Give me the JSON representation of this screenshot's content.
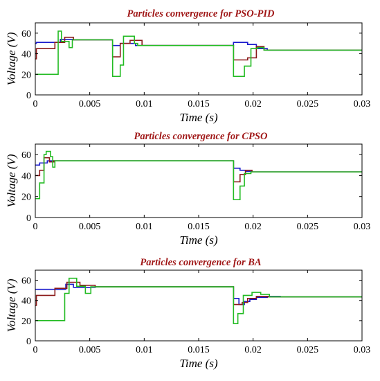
{
  "chart_data": [
    {
      "type": "line",
      "title": "Particles convergence for PSO-PID",
      "xlabel": "Time (s)",
      "ylabel": "Voltage (V)",
      "xlim": [
        0,
        0.03
      ],
      "ylim": [
        0,
        70
      ],
      "xticks": [
        "0",
        "0.005",
        "0.01",
        "0.015",
        "0.02",
        "0.025",
        "0.03"
      ],
      "yticks": [
        "0",
        "20",
        "40",
        "60"
      ],
      "series": [
        {
          "color": "#1a1acc",
          "x": [
            0,
            0.0001,
            0.0001,
            0.0023,
            0.0023,
            0.0035,
            0.0035,
            0.0071,
            0.0071,
            0.0078,
            0.0078,
            0.0092,
            0.0092,
            0.0182,
            0.0182,
            0.0195,
            0.0195,
            0.0203,
            0.0203,
            0.0213,
            0.0213,
            0.03
          ],
          "y": [
            50,
            50,
            51,
            51,
            54,
            54,
            53.5,
            53.5,
            48,
            48,
            50,
            50,
            48,
            48,
            51,
            51,
            49,
            49,
            45,
            45,
            43.5,
            43.5
          ]
        },
        {
          "color": "#8b1a1a",
          "x": [
            0,
            0.0001,
            0.0001,
            0.0018,
            0.0018,
            0.0027,
            0.0027,
            0.0035,
            0.0035,
            0.0071,
            0.0071,
            0.0078,
            0.0078,
            0.0087,
            0.0087,
            0.0098,
            0.0098,
            0.0182,
            0.0182,
            0.0195,
            0.0195,
            0.0203,
            0.0203,
            0.021,
            0.021,
            0.03
          ],
          "y": [
            35,
            35,
            45,
            45,
            51,
            51,
            56,
            56,
            53.5,
            53.5,
            37,
            37,
            50,
            50,
            53,
            53,
            48,
            48,
            34,
            34,
            36,
            36,
            47,
            47,
            43.5,
            43.5
          ]
        },
        {
          "color": "#22bb22",
          "x": [
            0,
            0.0001,
            0.0001,
            0.0021,
            0.0021,
            0.0024,
            0.0024,
            0.0031,
            0.0031,
            0.0034,
            0.0034,
            0.0071,
            0.0071,
            0.0078,
            0.0078,
            0.0081,
            0.0081,
            0.0091,
            0.0091,
            0.0094,
            0.0094,
            0.0182,
            0.0182,
            0.0192,
            0.0192,
            0.0198,
            0.0198,
            0.0204,
            0.0204,
            0.021,
            0.021,
            0.03
          ],
          "y": [
            20,
            20,
            20,
            20,
            62,
            62,
            52,
            52,
            46,
            46,
            53.5,
            53.5,
            18,
            18,
            29,
            29,
            57,
            57,
            50,
            50,
            48,
            48,
            18,
            18,
            28,
            28,
            45,
            45,
            46,
            46,
            43.5,
            43.5
          ]
        }
      ]
    },
    {
      "type": "line",
      "title": "Particles convergence for CPSO",
      "xlabel": "Time (s)",
      "ylabel": "Voltage (V)",
      "xlim": [
        0,
        0.03
      ],
      "ylim": [
        0,
        70
      ],
      "xticks": [
        "0",
        "0.005",
        "0.01",
        "0.015",
        "0.02",
        "0.025",
        "0.03"
      ],
      "yticks": [
        "0",
        "20",
        "40",
        "60"
      ],
      "series": [
        {
          "color": "#1a1acc",
          "x": [
            0,
            0.0004,
            0.0004,
            0.0011,
            0.0011,
            0.0015,
            0.0015,
            0.0182,
            0.0182,
            0.0188,
            0.0188,
            0.0193,
            0.0193,
            0.0199,
            0.0199,
            0.03
          ],
          "y": [
            50,
            50,
            52,
            52,
            54,
            54,
            54,
            54,
            47,
            47,
            45,
            45,
            44,
            44,
            43.5,
            43.5
          ]
        },
        {
          "color": "#8b1a1a",
          "x": [
            0,
            0.0004,
            0.0004,
            0.0008,
            0.0008,
            0.0013,
            0.0013,
            0.0017,
            0.0017,
            0.0182,
            0.0182,
            0.0188,
            0.0188,
            0.0193,
            0.0193,
            0.0199,
            0.0199,
            0.03
          ],
          "y": [
            40,
            40,
            45,
            45,
            57,
            57,
            53,
            53,
            54,
            54,
            34,
            34,
            41,
            41,
            45,
            45,
            43.5,
            43.5
          ]
        },
        {
          "color": "#22bb22",
          "x": [
            0,
            0.0004,
            0.0004,
            0.0008,
            0.0008,
            0.001,
            0.001,
            0.0014,
            0.0014,
            0.0016,
            0.0016,
            0.0018,
            0.0018,
            0.0182,
            0.0182,
            0.0188,
            0.0188,
            0.0192,
            0.0192,
            0.0198,
            0.0198,
            0.03
          ],
          "y": [
            18,
            18,
            33,
            33,
            60,
            60,
            63,
            63,
            58,
            58,
            48,
            48,
            54,
            54,
            17,
            17,
            30,
            30,
            42,
            42,
            43.5,
            43.5
          ]
        }
      ]
    },
    {
      "type": "line",
      "title": "Particles convergence for BA",
      "xlabel": "Time (s)",
      "ylabel": "Voltage (V)",
      "xlim": [
        0,
        0.03
      ],
      "ylim": [
        0,
        70
      ],
      "xticks": [
        "0",
        "0.005",
        "0.01",
        "0.015",
        "0.02",
        "0.025",
        "0.03"
      ],
      "yticks": [
        "0",
        "20",
        "40",
        "60"
      ],
      "series": [
        {
          "color": "#1a1acc",
          "x": [
            0,
            0.0001,
            0.0001,
            0.0028,
            0.0028,
            0.0035,
            0.0035,
            0.0055,
            0.0055,
            0.0182,
            0.0182,
            0.0187,
            0.0187,
            0.0192,
            0.0192,
            0.0197,
            0.0197,
            0.0203,
            0.0203,
            0.0213,
            0.0213,
            0.0225,
            0.0225,
            0.03
          ],
          "y": [
            51,
            51,
            51,
            51,
            56,
            56,
            53,
            53,
            53.5,
            53.5,
            42,
            42,
            36,
            36,
            39,
            39,
            41,
            41,
            43,
            43,
            44,
            44,
            43.5,
            43.5
          ]
        },
        {
          "color": "#8b1a1a",
          "x": [
            0,
            0.0001,
            0.0001,
            0.0018,
            0.0018,
            0.0029,
            0.0029,
            0.0041,
            0.0041,
            0.0055,
            0.0055,
            0.0182,
            0.0182,
            0.019,
            0.019,
            0.0195,
            0.0195,
            0.0203,
            0.0203,
            0.0213,
            0.0213,
            0.03
          ],
          "y": [
            35,
            35,
            45,
            45,
            52,
            52,
            58,
            58,
            55,
            55,
            53.5,
            53.5,
            36,
            36,
            38,
            38,
            42,
            42,
            44,
            44,
            43.5,
            43.5
          ]
        },
        {
          "color": "#22bb22",
          "x": [
            0,
            0.0001,
            0.0001,
            0.0027,
            0.0027,
            0.0031,
            0.0031,
            0.0038,
            0.0038,
            0.0046,
            0.0046,
            0.0051,
            0.0051,
            0.0182,
            0.0182,
            0.0186,
            0.0186,
            0.0191,
            0.0191,
            0.0199,
            0.0199,
            0.0207,
            0.0207,
            0.0215,
            0.0215,
            0.03
          ],
          "y": [
            20,
            20,
            20,
            20,
            47,
            47,
            62,
            62,
            54,
            54,
            47,
            47,
            53.5,
            53.5,
            17,
            17,
            27,
            27,
            45,
            45,
            48,
            48,
            46,
            46,
            43.5,
            43.5
          ]
        }
      ]
    }
  ]
}
